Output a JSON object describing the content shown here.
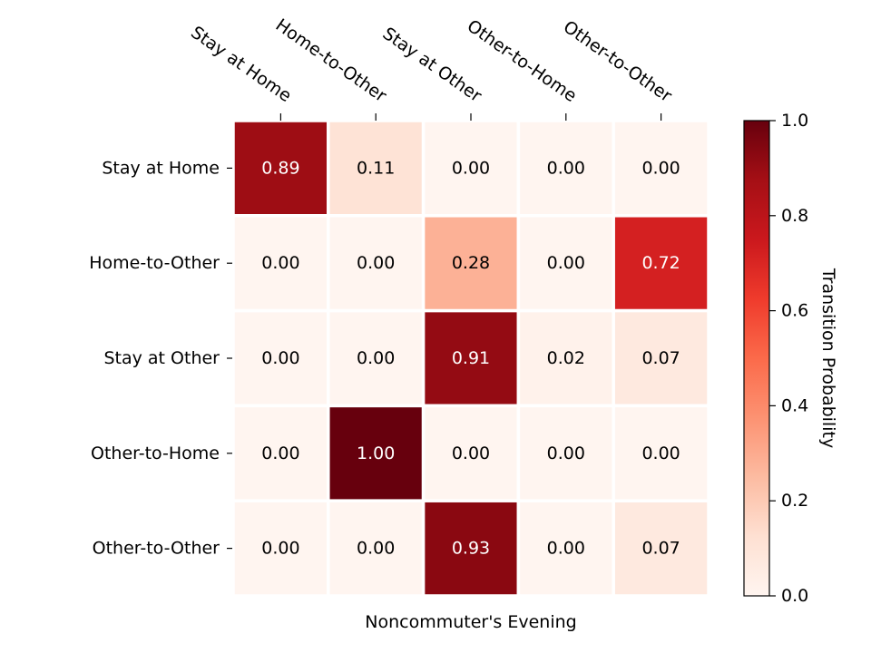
{
  "chart_data": {
    "type": "heatmap",
    "title": "",
    "xlabel": "Noncommuter's Evening",
    "ylabel": "",
    "x_categories": [
      "Stay at Home",
      "Home-to-Other",
      "Stay at Other",
      "Other-to-Home",
      "Other-to-Other"
    ],
    "y_categories": [
      "Stay at Home",
      "Home-to-Other",
      "Stay at Other",
      "Other-to-Home",
      "Other-to-Other"
    ],
    "values": [
      [
        0.89,
        0.11,
        0.0,
        0.0,
        0.0
      ],
      [
        0.0,
        0.0,
        0.28,
        0.0,
        0.72
      ],
      [
        0.0,
        0.0,
        0.91,
        0.02,
        0.07
      ],
      [
        0.0,
        1.0,
        0.0,
        0.0,
        0.0
      ],
      [
        0.0,
        0.0,
        0.93,
        0.0,
        0.07
      ]
    ],
    "value_labels": [
      [
        "0.89",
        "0.11",
        "0.00",
        "0.00",
        "0.00"
      ],
      [
        "0.00",
        "0.00",
        "0.28",
        "0.00",
        "0.72"
      ],
      [
        "0.00",
        "0.00",
        "0.91",
        "0.02",
        "0.07"
      ],
      [
        "0.00",
        "1.00",
        "0.00",
        "0.00",
        "0.00"
      ],
      [
        "0.00",
        "0.00",
        "0.93",
        "0.00",
        "0.07"
      ]
    ],
    "colormap": "Reds",
    "vmin": 0.0,
    "vmax": 1.0,
    "colorbar": {
      "label": "Transition Probability",
      "ticks": [
        0.0,
        0.2,
        0.4,
        0.6,
        0.8,
        1.0
      ],
      "tick_labels": [
        "0.0",
        "0.2",
        "0.4",
        "0.6",
        "0.8",
        "1.0"
      ]
    },
    "x_tick_position": "top",
    "colors": {
      "grid_line": "#ffffff",
      "light_text": "#ffffff",
      "dark_text": "#000000",
      "text_threshold": 0.5
    }
  }
}
